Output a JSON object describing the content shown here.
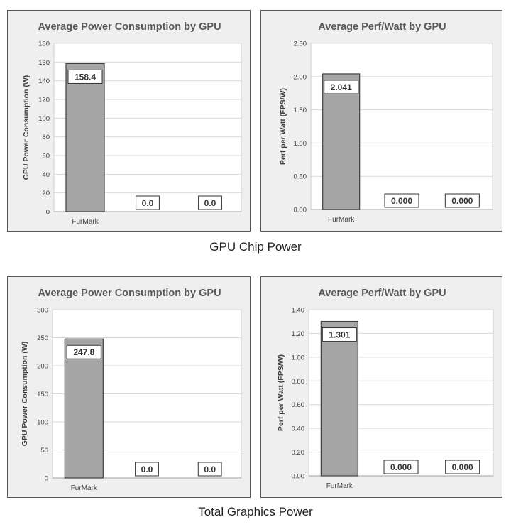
{
  "section_titles": {
    "top": "GPU Chip Power",
    "bottom": "Total Graphics Power"
  },
  "chart_data": [
    {
      "type": "bar",
      "title": "Average Power Consumption by GPU",
      "ylabel": "GPU Power Consumption (W)",
      "xlabel": "",
      "categories": [
        "FurMark",
        "",
        ""
      ],
      "values": [
        158.4,
        0.0,
        0.0
      ],
      "value_labels": [
        "158.4",
        "0.0",
        "0.0"
      ],
      "ylim": [
        0,
        180
      ],
      "yticks": [
        "0",
        "20",
        "40",
        "60",
        "80",
        "100",
        "120",
        "140",
        "160",
        "180"
      ],
      "grid": true,
      "bar_color": "#a6a6a6"
    },
    {
      "type": "bar",
      "title": "Average Perf/Watt by GPU",
      "ylabel": "Perf per Watt (FPS/W)",
      "xlabel": "",
      "categories": [
        "FurMark",
        "",
        ""
      ],
      "values": [
        2.041,
        0.0,
        0.0
      ],
      "value_labels": [
        "2.041",
        "0.000",
        "0.000"
      ],
      "ylim": [
        0,
        2.5
      ],
      "yticks": [
        "0.00",
        "0.50",
        "1.00",
        "1.50",
        "2.00",
        "2.50"
      ],
      "grid": true,
      "bar_color": "#a6a6a6"
    },
    {
      "type": "bar",
      "title": "Average Power Consumption by GPU",
      "ylabel": "GPU Power Consumption (W)",
      "xlabel": "",
      "categories": [
        "FurMark",
        "",
        ""
      ],
      "values": [
        247.8,
        0.0,
        0.0
      ],
      "value_labels": [
        "247.8",
        "0.0",
        "0.0"
      ],
      "ylim": [
        0,
        300
      ],
      "yticks": [
        "0",
        "50",
        "100",
        "150",
        "200",
        "250",
        "300"
      ],
      "grid": true,
      "bar_color": "#a6a6a6"
    },
    {
      "type": "bar",
      "title": "Average Perf/Watt by GPU",
      "ylabel": "Perf per Watt (FPS/W)",
      "xlabel": "",
      "categories": [
        "FurMark",
        "",
        ""
      ],
      "values": [
        1.301,
        0.0,
        0.0
      ],
      "value_labels": [
        "1.301",
        "0.000",
        "0.000"
      ],
      "ylim": [
        0,
        1.4
      ],
      "yticks": [
        "0.00",
        "0.20",
        "0.40",
        "0.60",
        "0.80",
        "1.00",
        "1.20",
        "1.40"
      ],
      "grid": true,
      "bar_color": "#a6a6a6"
    }
  ]
}
